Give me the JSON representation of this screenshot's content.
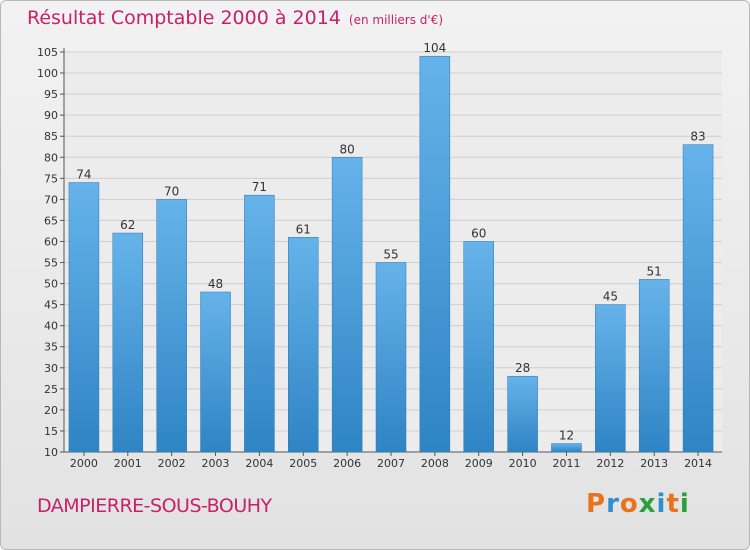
{
  "chart_data": {
    "type": "bar",
    "title": "Résultat Comptable 2000 à 2014",
    "unit_label": "(en milliers d'€)",
    "categories": [
      "2000",
      "2001",
      "2002",
      "2003",
      "2004",
      "2005",
      "2006",
      "2007",
      "2008",
      "2009",
      "2010",
      "2011",
      "2012",
      "2013",
      "2014"
    ],
    "values": [
      74,
      62,
      70,
      48,
      71,
      61,
      80,
      55,
      104,
      60,
      28,
      12,
      45,
      51,
      83
    ],
    "ylim": [
      10,
      105
    ],
    "yticks": [
      10,
      15,
      20,
      25,
      30,
      35,
      40,
      45,
      50,
      55,
      60,
      65,
      70,
      75,
      80,
      85,
      90,
      95,
      100,
      105
    ],
    "xlabel": "",
    "ylabel": "",
    "grid": true,
    "bar_color_light": "#66b3ea",
    "bar_color_dark": "#2f84c4"
  },
  "footer": {
    "town": "DAMPIERRE-SOUS-BOUHY",
    "logo": "Proxiti"
  },
  "colors": {
    "title": "#c8206a",
    "logo_letters": [
      "#e8731c",
      "#2e8fd0",
      "#e8731c",
      "#2aa03c",
      "#2e8fd0",
      "#e8731c",
      "#2aa03c"
    ]
  }
}
